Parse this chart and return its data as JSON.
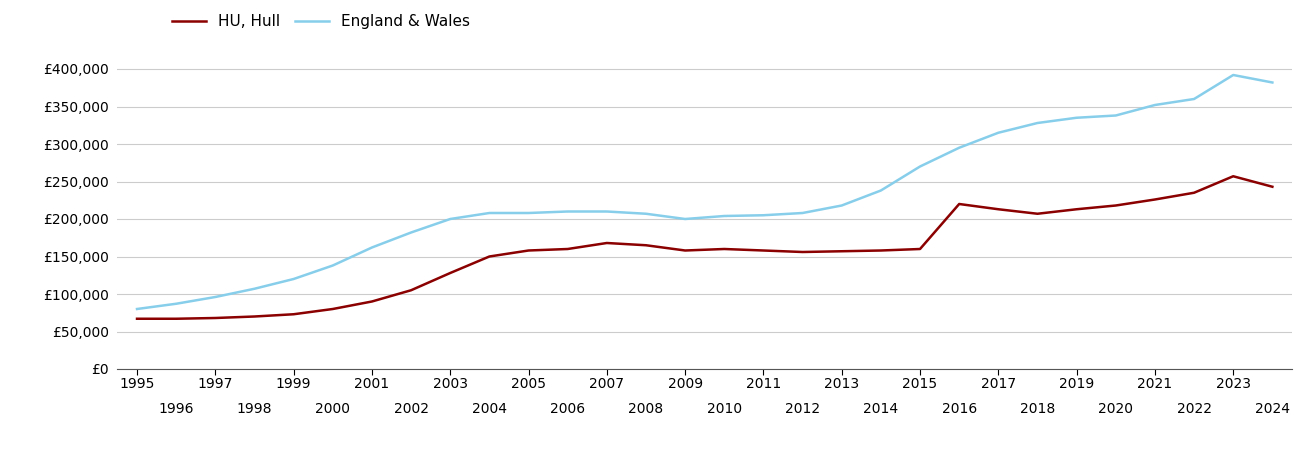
{
  "hull_years": [
    1995,
    1996,
    1997,
    1998,
    1999,
    2000,
    2001,
    2002,
    2003,
    2004,
    2005,
    2006,
    2007,
    2008,
    2009,
    2010,
    2011,
    2012,
    2013,
    2014,
    2015,
    2016,
    2017,
    2018,
    2019,
    2020,
    2021,
    2022,
    2023,
    2024
  ],
  "hull_values": [
    67000,
    67000,
    68000,
    70000,
    73000,
    80000,
    90000,
    105000,
    128000,
    150000,
    158000,
    160000,
    168000,
    165000,
    158000,
    160000,
    158000,
    156000,
    157000,
    158000,
    160000,
    220000,
    213000,
    207000,
    213000,
    218000,
    226000,
    235000,
    257000,
    243000
  ],
  "ew_years": [
    1995,
    1996,
    1997,
    1998,
    1999,
    2000,
    2001,
    2002,
    2003,
    2004,
    2005,
    2006,
    2007,
    2008,
    2009,
    2010,
    2011,
    2012,
    2013,
    2014,
    2015,
    2016,
    2017,
    2018,
    2019,
    2020,
    2021,
    2022,
    2023,
    2024
  ],
  "ew_values": [
    80000,
    87000,
    96000,
    107000,
    120000,
    138000,
    162000,
    182000,
    200000,
    208000,
    208000,
    210000,
    210000,
    207000,
    200000,
    204000,
    205000,
    208000,
    218000,
    238000,
    270000,
    295000,
    315000,
    328000,
    335000,
    338000,
    352000,
    360000,
    392000,
    382000
  ],
  "hull_color": "#8B0000",
  "ew_color": "#87CEEB",
  "hull_label": "HU, Hull",
  "ew_label": "England & Wales",
  "yticks": [
    0,
    50000,
    100000,
    150000,
    200000,
    250000,
    300000,
    350000,
    400000
  ],
  "ylim": [
    0,
    420000
  ],
  "xlim": [
    1994.5,
    2024.5
  ],
  "background_color": "#ffffff",
  "grid_color": "#cccccc",
  "line_width": 1.8,
  "odd_years": [
    1995,
    1997,
    1999,
    2001,
    2003,
    2005,
    2007,
    2009,
    2011,
    2013,
    2015,
    2017,
    2019,
    2021,
    2023
  ],
  "even_years": [
    1996,
    1998,
    2000,
    2002,
    2004,
    2006,
    2008,
    2010,
    2012,
    2014,
    2016,
    2018,
    2020,
    2022,
    2024
  ]
}
